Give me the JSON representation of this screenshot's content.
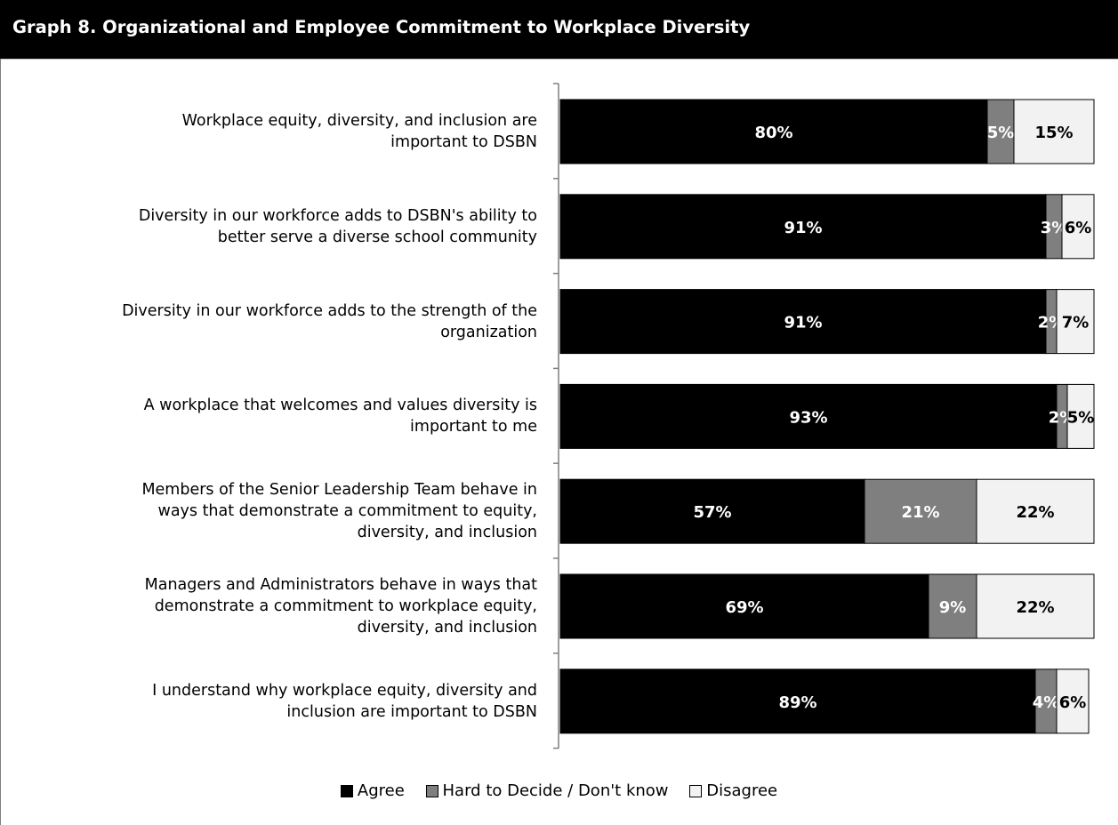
{
  "chart_data": {
    "type": "bar",
    "orientation": "horizontal",
    "stacked": true,
    "title": "Graph 8. Organizational and Employee Commitment to Workplace Diversity",
    "categories": [
      "Workplace equity, diversity, and inclusion are important to DSBN",
      "Diversity in our workforce adds to DSBN's ability to better serve a diverse school community",
      "Diversity in our workforce adds to the strength of the organization",
      "A workplace that welcomes and values diversity is important to me",
      "Members of the Senior Leadership Team behave in ways that demonstrate a commitment to equity, diversity, and inclusion",
      "Managers and Administrators behave in ways that demonstrate a commitment to workplace equity, diversity, and inclusion",
      "I understand why workplace equity, diversity and inclusion are important to DSBN"
    ],
    "category_lines": [
      [
        "Workplace equity, diversity, and inclusion are",
        "important to DSBN"
      ],
      [
        "Diversity in our workforce adds to DSBN's ability to",
        "better serve a diverse school community"
      ],
      [
        "Diversity in our workforce adds to the strength of the",
        "organization"
      ],
      [
        "A workplace that welcomes and values diversity is",
        "important to me"
      ],
      [
        "Members of the Senior Leadership Team behave in",
        "ways that demonstrate a commitment to equity,",
        "diversity, and inclusion"
      ],
      [
        "Managers and Administrators behave in ways that",
        "demonstrate a commitment to workplace equity,",
        "diversity, and inclusion"
      ],
      [
        "I understand why workplace equity, diversity and",
        "inclusion are important to DSBN"
      ]
    ],
    "series": [
      {
        "name": "Agree",
        "color": "#000000",
        "label_color": "#ffffff",
        "values": [
          80,
          91,
          91,
          93,
          57,
          69,
          89
        ]
      },
      {
        "name": "Hard to Decide / Don't know",
        "color": "#7f7f7f",
        "label_color": "#ffffff",
        "values": [
          5,
          3,
          2,
          2,
          21,
          9,
          4
        ]
      },
      {
        "name": "Disagree",
        "color": "#f2f2f2",
        "label_color": "#000000",
        "values": [
          15,
          6,
          7,
          5,
          22,
          22,
          6
        ]
      }
    ],
    "value_suffix": "%",
    "xlim": [
      0,
      100
    ],
    "grid": false,
    "legend_position": "bottom"
  }
}
